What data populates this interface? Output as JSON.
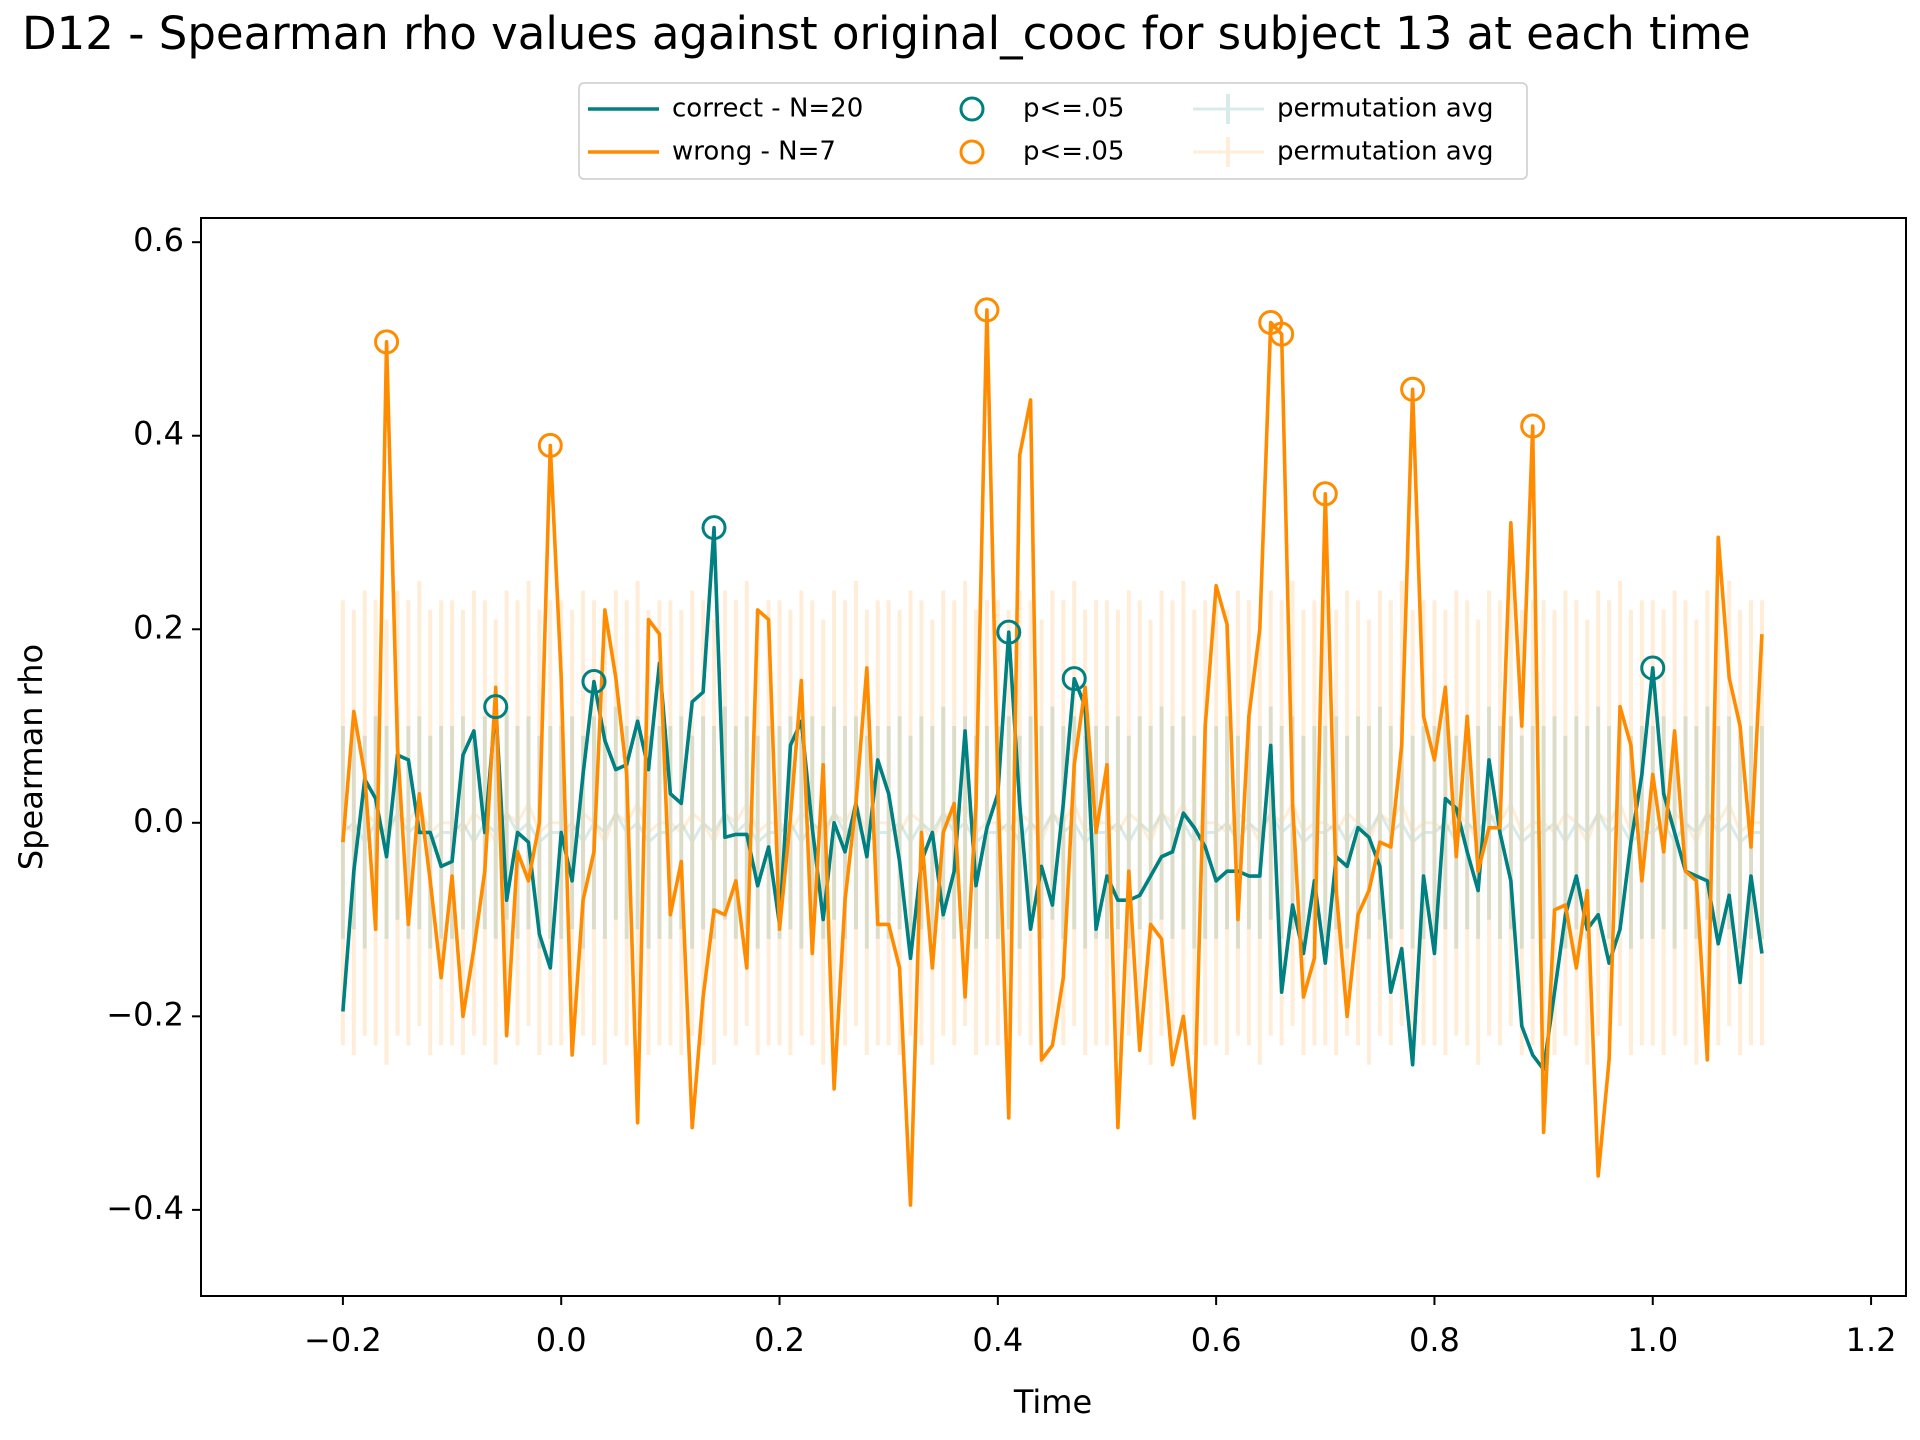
{
  "chart_data": {
    "type": "line",
    "title": "D12 - Spearman rho values against original_cooc for subject 13 at each time",
    "xlabel": "Time",
    "ylabel": "Spearman rho",
    "xlim": [
      -0.33,
      1.232
    ],
    "ylim": [
      -0.489,
      0.625
    ],
    "xticks": [
      {
        "value": -0.2,
        "label": "−0.2"
      },
      {
        "value": 0,
        "label": "0.0"
      },
      0.2,
      0.4,
      0.6,
      0.8,
      {
        "value": 1,
        "label": "1.0"
      },
      1.2
    ],
    "yticks": [
      {
        "value": -0.4,
        "label": "−0.4"
      },
      {
        "value": -0.2,
        "label": "−0.2"
      },
      {
        "value": 0,
        "label": "0.0"
      },
      0.2,
      0.4,
      0.6
    ],
    "legend": "upper center",
    "x": [
      -0.2,
      -0.19,
      -0.18,
      -0.17,
      -0.16,
      -0.15,
      -0.14,
      -0.13,
      -0.12,
      -0.11,
      -0.1,
      -0.09,
      -0.08,
      -0.07,
      -0.06,
      -0.05,
      -0.04,
      -0.03,
      -0.02,
      -0.01,
      0,
      0.01,
      0.02,
      0.03,
      0.04,
      0.05,
      0.06,
      0.07,
      0.08,
      0.09,
      0.1,
      0.11,
      0.12,
      0.13,
      0.14,
      0.15,
      0.16,
      0.17,
      0.18,
      0.19,
      0.2,
      0.21,
      0.22,
      0.23,
      0.24,
      0.25,
      0.26,
      0.27,
      0.28,
      0.29,
      0.3,
      0.31,
      0.32,
      0.33,
      0.34,
      0.35,
      0.36,
      0.37,
      0.38,
      0.39,
      0.4,
      0.41,
      0.42,
      0.43,
      0.44,
      0.45,
      0.46,
      0.47,
      0.48,
      0.49,
      0.5,
      0.51,
      0.52,
      0.53,
      0.54,
      0.55,
      0.56,
      0.57,
      0.58,
      0.59,
      0.6,
      0.61,
      0.62,
      0.63,
      0.64,
      0.65,
      0.66,
      0.67,
      0.68,
      0.69,
      0.7,
      0.71,
      0.72,
      0.73,
      0.74,
      0.75,
      0.76,
      0.77,
      0.78,
      0.79,
      0.8,
      0.81,
      0.82,
      0.83,
      0.84,
      0.85,
      0.86,
      0.87,
      0.88,
      0.89,
      0.9,
      0.91,
      0.92,
      0.93,
      0.94,
      0.95,
      0.96,
      0.97,
      0.98,
      0.99,
      1,
      1.01,
      1.02,
      1.03,
      1.04,
      1.05,
      1.06,
      1.07,
      1.08,
      1.09,
      1.1
    ],
    "series": [
      {
        "name": "correct - N=20",
        "color": "#008080",
        "style": "line",
        "values": [
          -0.195,
          -0.05,
          0.045,
          0.025,
          -0.035,
          0.07,
          0.065,
          -0.01,
          -0.01,
          -0.045,
          -0.04,
          0.07,
          0.095,
          -0.01,
          0.12,
          -0.08,
          -0.01,
          -0.02,
          -0.115,
          -0.15,
          -0.01,
          -0.06,
          0.05,
          0.146,
          0.085,
          0.055,
          0.06,
          0.105,
          0.055,
          0.165,
          0.03,
          0.02,
          0.125,
          0.135,
          0.305,
          -0.015,
          -0.012,
          -0.012,
          -0.065,
          -0.025,
          -0.105,
          0.08,
          0.105,
          -0.005,
          -0.1,
          0.0,
          -0.03,
          0.02,
          -0.035,
          0.065,
          0.03,
          -0.04,
          -0.14,
          -0.04,
          -0.01,
          -0.095,
          -0.05,
          0.095,
          -0.065,
          -0.005,
          0.03,
          0.197,
          0.02,
          -0.11,
          -0.045,
          -0.085,
          0.02,
          0.149,
          0.12,
          -0.11,
          -0.055,
          -0.08,
          -0.08,
          -0.075,
          -0.055,
          -0.035,
          -0.03,
          0.01,
          -0.005,
          -0.025,
          -0.06,
          -0.05,
          -0.05,
          -0.055,
          -0.055,
          0.08,
          -0.175,
          -0.085,
          -0.135,
          -0.06,
          -0.145,
          -0.035,
          -0.045,
          -0.005,
          -0.015,
          -0.045,
          -0.175,
          -0.13,
          -0.25,
          -0.055,
          -0.135,
          0.025,
          0.015,
          -0.03,
          -0.07,
          0.065,
          -0.01,
          -0.06,
          -0.21,
          -0.24,
          -0.255,
          -0.175,
          -0.095,
          -0.055,
          -0.11,
          -0.095,
          -0.145,
          -0.11,
          -0.02,
          0.05,
          0.16,
          0.03,
          -0.01,
          -0.05,
          -0.055,
          -0.06,
          -0.125,
          -0.075,
          -0.165,
          -0.055,
          -0.135
        ]
      },
      {
        "name": "wrong - N=7",
        "color": "#ff8c00",
        "style": "line",
        "values": [
          -0.02,
          0.115,
          0.05,
          -0.11,
          0.497,
          0.08,
          -0.105,
          0.03,
          -0.06,
          -0.16,
          -0.055,
          -0.2,
          -0.13,
          -0.05,
          0.14,
          -0.22,
          -0.03,
          -0.06,
          0.0,
          0.39,
          0.15,
          -0.24,
          -0.08,
          -0.03,
          0.22,
          0.15,
          0.05,
          -0.31,
          0.21,
          0.195,
          -0.095,
          -0.04,
          -0.315,
          -0.18,
          -0.09,
          -0.095,
          -0.06,
          -0.15,
          0.22,
          0.21,
          -0.11,
          0.005,
          0.147,
          -0.135,
          0.06,
          -0.275,
          -0.08,
          0.02,
          0.16,
          -0.105,
          -0.105,
          -0.15,
          -0.395,
          -0.01,
          -0.15,
          -0.01,
          0.02,
          -0.18,
          0.02,
          0.53,
          0.04,
          -0.305,
          0.38,
          0.437,
          -0.245,
          -0.23,
          -0.16,
          0.06,
          0.14,
          -0.01,
          0.06,
          -0.315,
          -0.05,
          -0.235,
          -0.105,
          -0.12,
          -0.25,
          -0.2,
          -0.305,
          0.1,
          0.245,
          0.205,
          -0.1,
          0.11,
          0.2,
          0.517,
          0.505,
          0.02,
          -0.18,
          -0.14,
          0.34,
          -0.07,
          -0.2,
          -0.095,
          -0.07,
          -0.02,
          -0.025,
          0.08,
          0.448,
          0.11,
          0.065,
          0.14,
          -0.035,
          0.11,
          -0.05,
          -0.005,
          -0.005,
          0.31,
          0.1,
          0.41,
          -0.32,
          -0.09,
          -0.085,
          -0.15,
          -0.07,
          -0.365,
          -0.245,
          0.12,
          0.08,
          -0.06,
          0.05,
          -0.03,
          0.095,
          -0.05,
          -0.06,
          -0.245,
          0.295,
          0.15,
          0.1,
          -0.025,
          0.195
        ]
      },
      {
        "name": "p<=.05",
        "color": "#008080",
        "style": "circle",
        "x": [
          -0.06,
          0.03,
          0.14,
          0.41,
          0.47,
          1
        ],
        "values": [
          0.12,
          0.146,
          0.305,
          0.197,
          0.149,
          0.16
        ]
      },
      {
        "name": "p<=.05",
        "color": "#ff8c00",
        "style": "circle",
        "x": [
          -0.16,
          -0.01,
          0.39,
          0.65,
          0.66,
          0.7,
          0.78,
          0.89
        ],
        "values": [
          0.497,
          0.39,
          0.53,
          0.517,
          0.505,
          0.34,
          0.448,
          0.41
        ]
      },
      {
        "name": "permutation avg",
        "color": "#008080",
        "style": "errorbar",
        "err": 0.11,
        "values": [
          -0.01,
          0,
          -0.02,
          0,
          -0.01,
          0.01,
          -0.01,
          0,
          -0.02,
          -0.01,
          -0.01,
          0,
          -0.02,
          0,
          -0.01,
          0.01,
          -0.01,
          0,
          -0.02,
          -0.01,
          -0.01,
          0,
          -0.02,
          0,
          -0.01,
          0.01,
          -0.01,
          0,
          -0.02,
          -0.01,
          -0.01,
          0,
          -0.02,
          0,
          -0.01,
          0.01,
          -0.01,
          0,
          -0.02,
          -0.01,
          -0.01,
          0,
          -0.02,
          0,
          -0.01,
          0.01,
          -0.01,
          0,
          -0.02,
          -0.01,
          -0.01,
          0,
          -0.02,
          0,
          -0.01,
          0.01,
          -0.01,
          0,
          -0.02,
          -0.01,
          -0.01,
          0,
          -0.02,
          0,
          -0.01,
          0.01,
          -0.01,
          0,
          -0.02,
          -0.01,
          -0.01,
          0,
          -0.02,
          0,
          -0.01,
          0.01,
          -0.01,
          0,
          -0.02,
          -0.01,
          -0.01,
          0,
          -0.02,
          0,
          -0.01,
          0.01,
          -0.01,
          0,
          -0.02,
          -0.01,
          -0.01,
          0,
          -0.02,
          0,
          -0.01,
          0.01,
          -0.01,
          0,
          -0.02,
          -0.01,
          -0.01,
          0,
          -0.02,
          0,
          -0.01,
          0.01,
          -0.01,
          0,
          -0.02,
          -0.01,
          -0.01,
          0,
          -0.02,
          0,
          -0.01,
          0.01,
          -0.01,
          0,
          -0.02,
          -0.01,
          -0.01,
          0,
          -0.02,
          0,
          -0.01,
          0.01,
          -0.01,
          0,
          -0.02,
          -0.01,
          -0.01
        ]
      },
      {
        "name": "permutation avg",
        "color": "#ff8c00",
        "style": "errorbar",
        "err": 0.23,
        "values": [
          0,
          -0.01,
          0.01,
          0,
          -0.02,
          0.01,
          0,
          0.02,
          -0.01,
          0,
          0,
          -0.01,
          0.01,
          0,
          -0.02,
          0.01,
          0,
          0.02,
          -0.01,
          0,
          0,
          -0.01,
          0.01,
          0,
          -0.02,
          0.01,
          0,
          0.02,
          -0.01,
          0,
          0,
          -0.01,
          0.01,
          0,
          -0.02,
          0.01,
          0,
          0.02,
          -0.01,
          0,
          0,
          -0.01,
          0.01,
          0,
          -0.02,
          0.01,
          0,
          0.02,
          -0.01,
          0,
          0,
          -0.01,
          0.01,
          0,
          -0.02,
          0.01,
          0,
          0.02,
          -0.01,
          0,
          0,
          -0.01,
          0.01,
          0,
          -0.02,
          0.01,
          0,
          0.02,
          -0.01,
          0,
          0,
          -0.01,
          0.01,
          0,
          -0.02,
          0.01,
          0,
          0.02,
          -0.01,
          0,
          0,
          -0.01,
          0.01,
          0,
          -0.02,
          0.01,
          0,
          0.02,
          -0.01,
          0,
          0,
          -0.01,
          0.01,
          0,
          -0.02,
          0.01,
          0,
          0.02,
          -0.01,
          0,
          0,
          -0.01,
          0.01,
          0,
          -0.02,
          0.01,
          0,
          0.02,
          -0.01,
          0,
          0,
          -0.01,
          0.01,
          0,
          -0.02,
          0.01,
          0,
          0.02,
          -0.01,
          0,
          0,
          -0.01,
          0.01,
          0,
          -0.02,
          0.01,
          0,
          0.02,
          -0.01,
          0,
          0
        ]
      }
    ]
  }
}
